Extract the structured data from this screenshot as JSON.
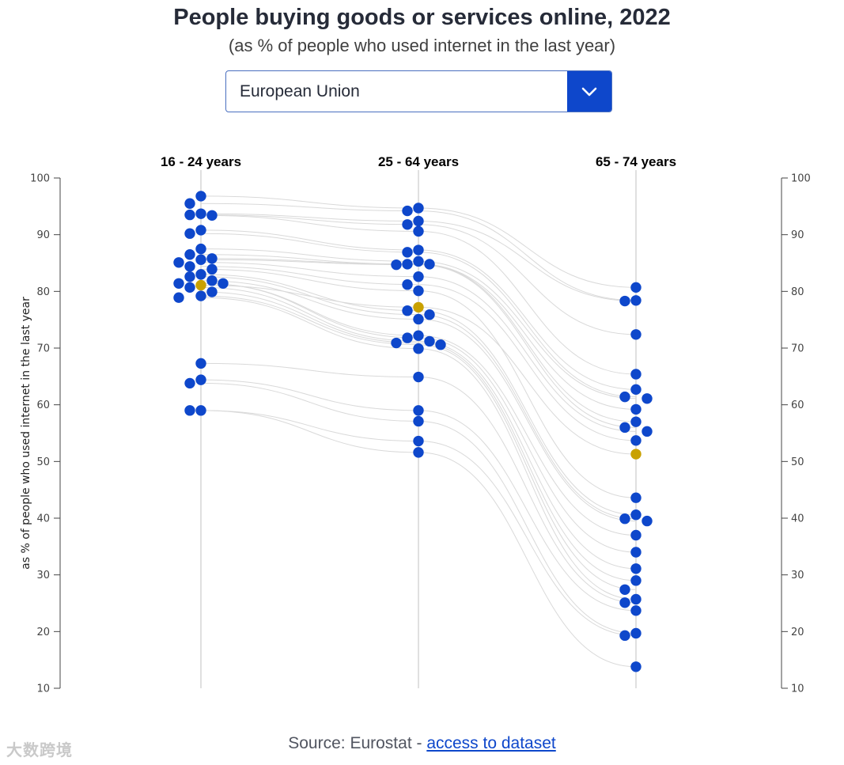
{
  "title": "People buying goods or services online, 2022",
  "subtitle": "(as % of people who used internet in the last year)",
  "dropdown": {
    "selected": "European Union"
  },
  "source": {
    "prefix": "Source: Eurostat - ",
    "link_label": "access to dataset"
  },
  "watermark": "大数跨境",
  "colors": {
    "country": "#0e47cb",
    "highlight": "#c9a100",
    "line": "#d9d9d9",
    "axis": "#444444",
    "category_axis": "#cccccc"
  },
  "chart_data": {
    "type": "scatter",
    "title": "People buying goods or services online, 2022",
    "ylabel": "as % of people who used internet in the last year",
    "ylim": [
      10,
      100
    ],
    "yticks": [
      10,
      20,
      30,
      40,
      50,
      60,
      70,
      80,
      90,
      100
    ],
    "categories": [
      "16 - 24 years",
      "25 - 64 years",
      "65 - 74 years"
    ],
    "highlight": {
      "name": "European Union",
      "values": [
        81.1,
        77.2,
        51.3
      ]
    },
    "series": [
      {
        "name": "C01",
        "values": [
          96.8,
          94.7,
          80.7
        ]
      },
      {
        "name": "C02",
        "values": [
          95.5,
          94.2,
          78.4
        ]
      },
      {
        "name": "C03",
        "values": [
          93.7,
          92.4,
          78.3
        ]
      },
      {
        "name": "C04",
        "values": [
          93.5,
          91.8,
          72.4
        ]
      },
      {
        "name": "C05",
        "values": [
          93.4,
          90.6,
          65.4
        ]
      },
      {
        "name": "C06",
        "values": [
          90.8,
          87.3,
          62.7
        ]
      },
      {
        "name": "C07",
        "values": [
          90.2,
          86.9,
          61.4
        ]
      },
      {
        "name": "C08",
        "values": [
          87.5,
          85.3,
          61.1
        ]
      },
      {
        "name": "C09",
        "values": [
          86.5,
          84.8,
          59.2
        ]
      },
      {
        "name": "C10",
        "values": [
          85.8,
          84.8,
          57.0
        ]
      },
      {
        "name": "C11",
        "values": [
          85.6,
          84.7,
          56.0
        ]
      },
      {
        "name": "C12",
        "values": [
          85.1,
          82.6,
          55.3
        ]
      },
      {
        "name": "C13",
        "values": [
          84.4,
          81.2,
          53.7
        ]
      },
      {
        "name": "C14",
        "values": [
          83.9,
          80.1,
          43.6
        ]
      },
      {
        "name": "C15",
        "values": [
          83.0,
          76.6,
          40.6
        ]
      },
      {
        "name": "C16",
        "values": [
          82.6,
          75.9,
          39.9
        ]
      },
      {
        "name": "C17",
        "values": [
          81.9,
          75.1,
          39.5
        ]
      },
      {
        "name": "C18",
        "values": [
          81.4,
          72.2,
          37.0
        ]
      },
      {
        "name": "C19",
        "values": [
          81.4,
          71.8,
          34.0
        ]
      },
      {
        "name": "C20",
        "values": [
          80.7,
          71.2,
          31.1
        ]
      },
      {
        "name": "C21",
        "values": [
          79.9,
          70.9,
          29.0
        ]
      },
      {
        "name": "C22",
        "values": [
          79.2,
          70.6,
          27.4
        ]
      },
      {
        "name": "C23",
        "values": [
          78.9,
          69.9,
          25.7
        ]
      },
      {
        "name": "C24",
        "values": [
          67.3,
          64.9,
          25.1
        ]
      },
      {
        "name": "C25",
        "values": [
          64.4,
          59.0,
          23.7
        ]
      },
      {
        "name": "C26",
        "values": [
          63.8,
          57.1,
          19.7
        ]
      },
      {
        "name": "C27",
        "values": [
          59.0,
          53.6,
          19.3
        ]
      },
      {
        "name": "C28",
        "values": [
          59.0,
          51.6,
          13.8
        ]
      }
    ]
  }
}
